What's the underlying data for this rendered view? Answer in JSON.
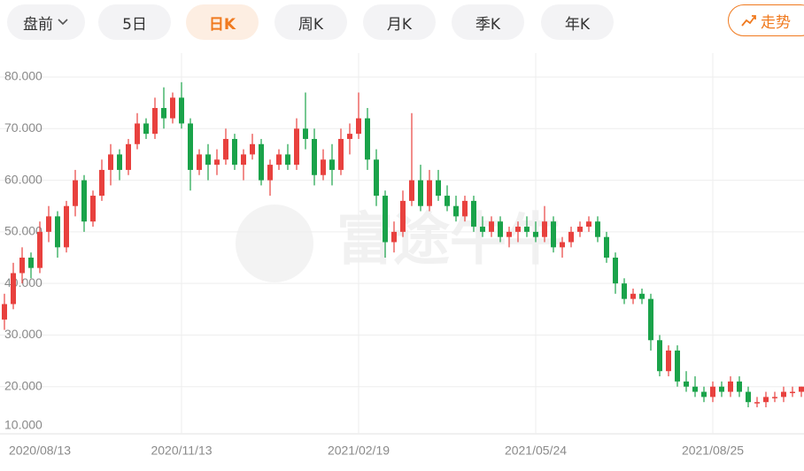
{
  "ui": {
    "tabs": [
      "盘前",
      "5日",
      "日K",
      "周K",
      "月K",
      "季K",
      "年K"
    ],
    "trend_button": "走势",
    "watermark": "富途牛牛"
  },
  "chart_data": {
    "type": "candlestick",
    "up_color": "#e8413e",
    "down_color": "#1aa34a",
    "grid": true,
    "ylim": [
      10,
      80
    ],
    "yticks": [
      {
        "value": 10,
        "label": "10.000"
      },
      {
        "value": 20,
        "label": "20.000"
      },
      {
        "value": 30,
        "label": "30.000"
      },
      {
        "value": 40,
        "label": "40.000"
      },
      {
        "value": 50,
        "label": "50.000"
      },
      {
        "value": 60,
        "label": "60.000"
      },
      {
        "value": 70,
        "label": "70.000"
      },
      {
        "value": 80,
        "label": "80.000"
      }
    ],
    "categories": [
      null,
      null,
      null,
      null,
      "2020/08/13",
      null,
      null,
      null,
      null,
      null,
      null,
      null,
      null,
      null,
      null,
      null,
      null,
      null,
      null,
      null,
      "2020/11/13",
      null,
      null,
      null,
      null,
      null,
      null,
      null,
      null,
      null,
      null,
      null,
      null,
      null,
      null,
      null,
      null,
      null,
      null,
      null,
      "2021/02/19",
      null,
      null,
      null,
      null,
      null,
      null,
      null,
      null,
      null,
      null,
      null,
      null,
      null,
      null,
      null,
      null,
      null,
      null,
      null,
      "2021/05/24",
      null,
      null,
      null,
      null,
      null,
      null,
      null,
      null,
      null,
      null,
      null,
      null,
      null,
      null,
      null,
      null,
      null,
      null,
      null,
      "2021/08/25",
      null,
      null,
      null,
      null,
      null,
      null,
      null,
      null,
      null,
      null
    ],
    "open": [
      33,
      36,
      42,
      45,
      43,
      50,
      53,
      47,
      55,
      60,
      52,
      57,
      62,
      65,
      62,
      67,
      71,
      69,
      74,
      72,
      76,
      71,
      62,
      65,
      63,
      64,
      68,
      63,
      65,
      67,
      60,
      63,
      65,
      63,
      70,
      68,
      61,
      64,
      62,
      68,
      69,
      72,
      64,
      57,
      48,
      50,
      56,
      60,
      55,
      60,
      57,
      55,
      53,
      56,
      51,
      50,
      52,
      49,
      50,
      51,
      50,
      49,
      52,
      47,
      48,
      50,
      51,
      52,
      49,
      45,
      40,
      37,
      38,
      37,
      29,
      23,
      27,
      21,
      20,
      19,
      18,
      20,
      19,
      21,
      19,
      17,
      17,
      18,
      18,
      19,
      19
    ],
    "high": [
      38,
      44,
      47,
      46,
      52,
      55,
      54,
      56,
      62,
      61,
      58,
      64,
      67,
      66,
      68,
      73,
      72,
      76,
      78,
      77,
      79,
      72,
      66,
      67,
      66,
      70,
      69,
      66,
      69,
      68,
      64,
      66,
      67,
      72,
      77,
      70,
      66,
      67,
      70,
      71,
      77,
      74,
      66,
      58,
      52,
      58,
      73,
      63,
      62,
      62,
      59,
      57,
      57,
      57,
      53,
      53,
      53,
      51,
      52,
      53,
      52,
      55,
      53,
      49,
      51,
      52,
      53,
      53,
      50,
      46,
      41,
      39,
      39,
      38,
      30,
      28,
      28,
      23,
      22,
      20,
      21,
      21,
      22,
      22,
      20,
      18,
      19,
      19,
      20,
      20,
      20
    ],
    "low": [
      31,
      35,
      40,
      41,
      42,
      48,
      45,
      46,
      53,
      50,
      51,
      56,
      59,
      60,
      61,
      66,
      68,
      68,
      70,
      71,
      70,
      58,
      61,
      60,
      61,
      63,
      62,
      60,
      64,
      59,
      57,
      62,
      62,
      62,
      66,
      59,
      60,
      59,
      61,
      65,
      68,
      62,
      55,
      45,
      46,
      49,
      55,
      54,
      54,
      56,
      54,
      52,
      52,
      50,
      49,
      49,
      48,
      47,
      48,
      49,
      48,
      48,
      46,
      45,
      47,
      49,
      50,
      48,
      44,
      38,
      36,
      36,
      36,
      27,
      22,
      22,
      20,
      19,
      18,
      17,
      17,
      18,
      18,
      18,
      16,
      16,
      16,
      17,
      17,
      18,
      18
    ],
    "close": [
      36,
      42,
      45,
      43,
      50,
      53,
      47,
      55,
      60,
      52,
      57,
      62,
      65,
      62,
      67,
      71,
      69,
      74,
      72,
      76,
      71,
      62,
      65,
      63,
      64,
      68,
      63,
      65,
      67,
      60,
      63,
      65,
      63,
      70,
      68,
      61,
      64,
      62,
      68,
      69,
      72,
      64,
      57,
      48,
      50,
      56,
      60,
      55,
      60,
      57,
      55,
      53,
      56,
      51,
      50,
      52,
      49,
      50,
      51,
      50,
      49,
      52,
      47,
      48,
      50,
      51,
      52,
      49,
      45,
      40,
      37,
      38,
      37,
      29,
      23,
      27,
      21,
      20,
      19,
      18,
      20,
      19,
      21,
      19,
      17,
      17,
      18,
      18,
      19,
      19,
      20
    ]
  }
}
